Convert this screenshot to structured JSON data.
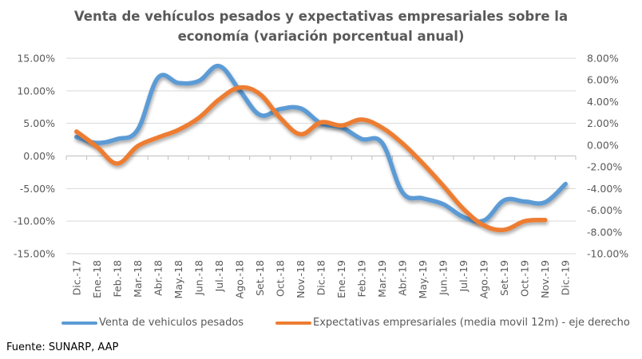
{
  "chart_data": {
    "type": "line",
    "title": "Venta de vehículos pesados y expectativas empresariales sobre la economía (variación porcentual anual)",
    "title_lines": [
      "Venta de vehículos pesados y expectativas empresariales sobre la",
      "economía (variación porcentual anual)"
    ],
    "categories": [
      "Dic.-17",
      "Ene.-18",
      "Feb.-18",
      "Mar.-18",
      "Abr.-18",
      "May.-18",
      "Jun.-18",
      "Jul.-18",
      "Ago.-18",
      "Set.-18",
      "Oct.-18",
      "Nov.-18",
      "Dic.-18",
      "Ene.-19",
      "Feb.-19",
      "Mar.-19",
      "Abr.-19",
      "May.-19",
      "Jun.-19",
      "Jul.-19",
      "Ago.-19",
      "Set.-19",
      "Oct.-19",
      "Nov.-19",
      "Dic.-19"
    ],
    "series": [
      {
        "name": "Venta de vehiculos pesados",
        "axis": "left",
        "color": "#5B9BD5",
        "values": [
          2.9,
          2.0,
          2.6,
          4.0,
          12.0,
          11.2,
          11.5,
          13.8,
          10.1,
          6.3,
          7.2,
          7.3,
          5.0,
          4.4,
          2.6,
          2.0,
          -5.6,
          -6.5,
          -7.4,
          -9.4,
          -9.9,
          -6.8,
          -7.0,
          -7.1,
          -4.3
        ]
      },
      {
        "name": "Expectativas empresariales (media movil 12m) - eje derecho",
        "axis": "right",
        "color": "#ED7D31",
        "values": [
          1.25,
          -0.15,
          -1.7,
          -0.1,
          0.7,
          1.4,
          2.5,
          4.2,
          5.3,
          4.7,
          2.5,
          1.0,
          2.1,
          1.8,
          2.35,
          1.6,
          0.15,
          -1.7,
          -3.75,
          -5.9,
          -7.4,
          -7.8,
          -7.0,
          -6.9,
          null
        ]
      }
    ],
    "y_left": {
      "min": -15,
      "max": 15,
      "step": 5,
      "ticks": [
        "15.00%",
        "10.00%",
        "5.00%",
        "0.00%",
        "-5.00%",
        "-10.00%",
        "-15.00%"
      ]
    },
    "y_right": {
      "min": -10,
      "max": 8,
      "step": 2,
      "ticks": [
        "8.00%",
        "6.00%",
        "4.00%",
        "2.00%",
        "0.00%",
        "-2.00%",
        "-4.00%",
        "-6.00%",
        "-8.00%",
        "-10.00%"
      ]
    },
    "xlabel": "",
    "ylabel": "",
    "grid": true,
    "legend_position": "bottom"
  },
  "source": "Fuente: SUNARP, AAP"
}
